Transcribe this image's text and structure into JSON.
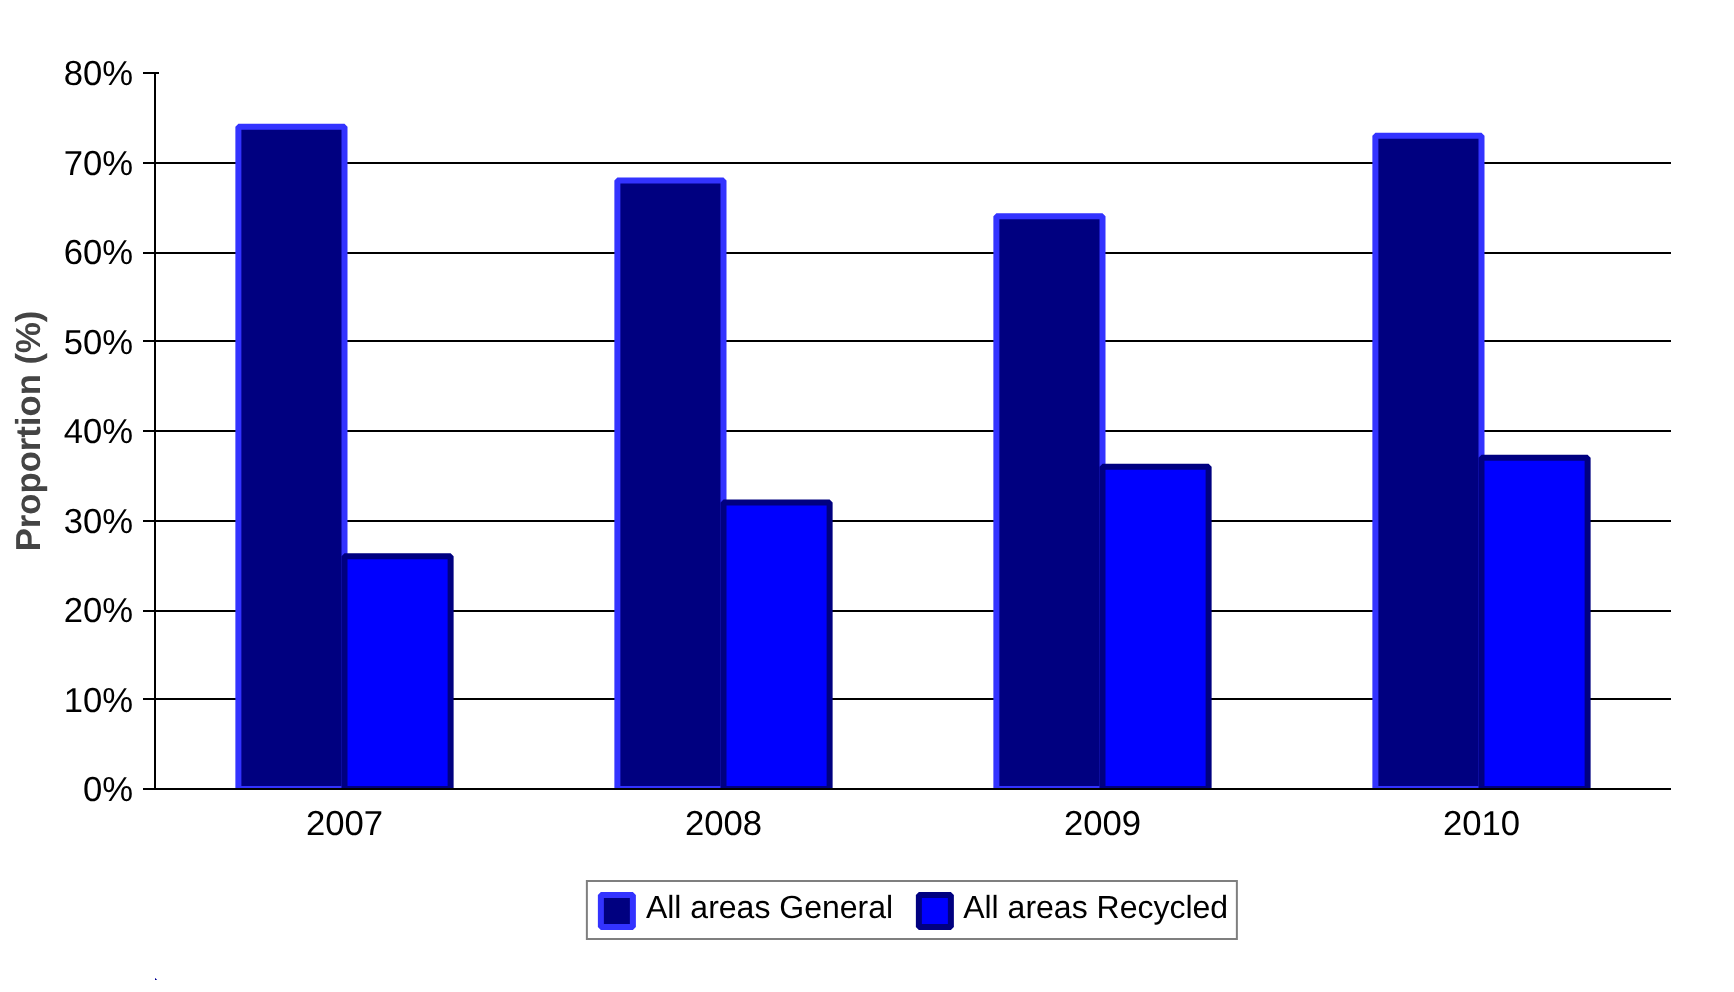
{
  "chart_data": {
    "type": "bar",
    "ylabel": "Proportion (%)",
    "categories": [
      "2007",
      "2008",
      "2009",
      "2010"
    ],
    "series": [
      {
        "name": "All areas General",
        "color": "#000080",
        "values": [
          74,
          68,
          64,
          73
        ]
      },
      {
        "name": "All areas Recycled",
        "color": "#0000ff",
        "values": [
          26,
          32,
          36,
          37
        ]
      }
    ],
    "ylim": [
      0,
      80
    ],
    "yticks": [
      {
        "value": 0,
        "label": "0%"
      },
      {
        "value": 10,
        "label": "10%"
      },
      {
        "value": 20,
        "label": "20%"
      },
      {
        "value": 30,
        "label": "30%"
      },
      {
        "value": 40,
        "label": "40%"
      },
      {
        "value": 50,
        "label": "50%"
      },
      {
        "value": 60,
        "label": "60%"
      },
      {
        "value": 70,
        "label": "70%"
      },
      {
        "value": 80,
        "label": "80%"
      }
    ],
    "grid": "y",
    "legend": "bottom"
  }
}
